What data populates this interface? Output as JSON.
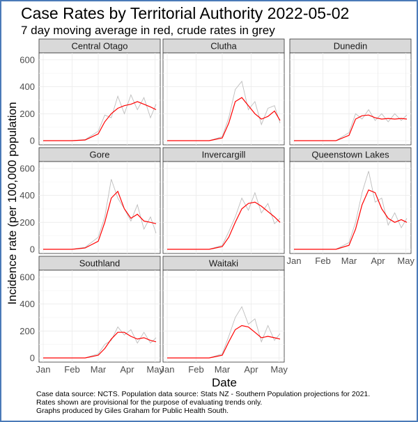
{
  "title": "Case Rates by Territorial Authority 2022-05-02",
  "subtitle": "7 day moving average in red, crude rates in grey",
  "ylabel": "Incidence rate (per 100,000 population",
  "xlabel": "Date",
  "caption": [
    "Case data source: NCTS. Population data source: Stats NZ -  Southern Population projections for 2021.",
    "Rates shown are provisional for the purpose of evaluating trends only.",
    "Graphs produced by Giles Graham for Public Health South."
  ],
  "colors": {
    "moving_average": "#ff0000",
    "crude": "#bdbdbd",
    "strip": "#d9d9d9",
    "grid": "#ebebeb",
    "frame_border": "#4a7ab8"
  },
  "chart_data": {
    "type": "line",
    "layout": "facet-wrap",
    "x_axis": {
      "type": "date",
      "range": [
        "2022-01-01",
        "2022-05-02"
      ],
      "tick_labels": [
        "Jan",
        "Feb",
        "Mar",
        "Apr",
        "May"
      ],
      "tick_dates": [
        "2022-01-01",
        "2022-02-01",
        "2022-03-01",
        "2022-04-01",
        "2022-05-01"
      ]
    },
    "y_axis": {
      "ylim": [
        0,
        620
      ],
      "ticks": [
        0,
        200,
        400,
        600
      ]
    },
    "grid": true,
    "dates": [
      "2022-01-01",
      "2022-01-15",
      "2022-02-01",
      "2022-02-15",
      "2022-03-01",
      "2022-03-08",
      "2022-03-15",
      "2022-03-22",
      "2022-03-29",
      "2022-04-05",
      "2022-04-12",
      "2022-04-19",
      "2022-04-26",
      "2022-05-02"
    ],
    "facets": [
      {
        "name": "Central Otago",
        "moving_average": [
          0,
          0,
          0,
          5,
          50,
          140,
          200,
          240,
          260,
          270,
          290,
          270,
          250,
          230
        ],
        "crude": [
          0,
          0,
          0,
          8,
          70,
          190,
          170,
          330,
          200,
          340,
          230,
          320,
          170,
          270
        ]
      },
      {
        "name": "Clutha",
        "moving_average": [
          0,
          0,
          0,
          0,
          20,
          130,
          290,
          320,
          260,
          200,
          160,
          180,
          220,
          150
        ],
        "crude": [
          0,
          0,
          0,
          0,
          30,
          170,
          380,
          440,
          230,
          290,
          120,
          240,
          260,
          130
        ]
      },
      {
        "name": "Dunedin",
        "moving_average": [
          0,
          0,
          0,
          0,
          40,
          160,
          185,
          190,
          170,
          160,
          165,
          160,
          165,
          160
        ],
        "crude": [
          0,
          0,
          0,
          0,
          60,
          200,
          160,
          230,
          150,
          200,
          140,
          200,
          150,
          190
        ]
      },
      {
        "name": "Gore",
        "moving_average": [
          0,
          0,
          0,
          10,
          60,
          200,
          380,
          430,
          300,
          230,
          260,
          210,
          200,
          190
        ],
        "crude": [
          0,
          0,
          0,
          15,
          90,
          240,
          520,
          380,
          300,
          210,
          330,
          150,
          240,
          120
        ]
      },
      {
        "name": "Invercargill",
        "moving_average": [
          0,
          0,
          0,
          0,
          20,
          90,
          200,
          300,
          340,
          350,
          320,
          280,
          240,
          200
        ],
        "crude": [
          0,
          0,
          0,
          0,
          30,
          130,
          240,
          380,
          290,
          420,
          270,
          340,
          190,
          230
        ]
      },
      {
        "name": "Queenstown Lakes",
        "moving_average": [
          0,
          0,
          0,
          0,
          30,
          150,
          330,
          440,
          420,
          300,
          230,
          200,
          220,
          200
        ],
        "crude": [
          0,
          0,
          0,
          0,
          50,
          200,
          420,
          580,
          350,
          380,
          180,
          270,
          160,
          230
        ]
      },
      {
        "name": "Southland",
        "moving_average": [
          0,
          0,
          0,
          0,
          20,
          70,
          140,
          190,
          190,
          160,
          140,
          150,
          130,
          120
        ],
        "crude": [
          0,
          0,
          0,
          0,
          30,
          100,
          130,
          230,
          170,
          210,
          110,
          190,
          110,
          150
        ]
      },
      {
        "name": "Waitaki",
        "moving_average": [
          0,
          0,
          0,
          0,
          20,
          120,
          210,
          240,
          230,
          190,
          150,
          160,
          150,
          140
        ],
        "crude": [
          0,
          0,
          0,
          0,
          30,
          160,
          300,
          380,
          250,
          290,
          120,
          240,
          130,
          180
        ]
      }
    ]
  }
}
